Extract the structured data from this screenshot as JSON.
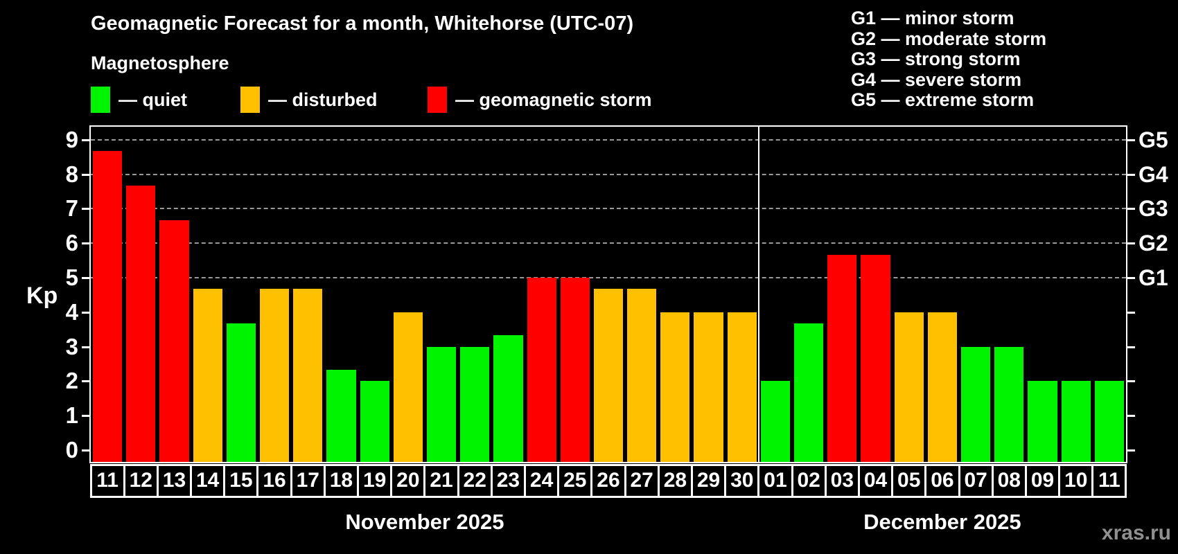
{
  "chart_data": {
    "type": "bar",
    "title": "Geomagnetic Forecast for a month, Whitehorse (UTC-07)",
    "subtitle": "Magnetosphere",
    "ylabel": "Kp",
    "ylim": [
      0,
      9.4
    ],
    "y_ticks": [
      0,
      1,
      2,
      3,
      4,
      5,
      6,
      7,
      8,
      9
    ],
    "gridlines": [
      5,
      6,
      7,
      8,
      9
    ],
    "grid": "dashed horizontal at storm levels only",
    "legend_position": "top-left",
    "right_axis_labels": [
      {
        "label": "G1",
        "value": 5
      },
      {
        "label": "G2",
        "value": 6
      },
      {
        "label": "G3",
        "value": 7
      },
      {
        "label": "G4",
        "value": 8
      },
      {
        "label": "G5",
        "value": 9
      }
    ],
    "legend": [
      {
        "label": "— quiet",
        "level": "quiet",
        "color": "#00f400"
      },
      {
        "label": "— disturbed",
        "level": "disturbed",
        "color": "#ffc000"
      },
      {
        "label": "— geomagnetic storm",
        "level": "storm",
        "color": "#ff0000"
      }
    ],
    "g_legend": [
      "G1 — minor storm",
      "G2 — moderate storm",
      "G3 — strong storm",
      "G4 — severe storm",
      "G5 — extreme storm"
    ],
    "colors": {
      "quiet": "#00f400",
      "disturbed": "#ffc000",
      "storm": "#ff0000"
    },
    "months": [
      {
        "label": "November 2025",
        "days": [
          {
            "day": "11",
            "value": 8.67,
            "level": "storm"
          },
          {
            "day": "12",
            "value": 7.67,
            "level": "storm"
          },
          {
            "day": "13",
            "value": 6.67,
            "level": "storm"
          },
          {
            "day": "14",
            "value": 4.67,
            "level": "disturbed"
          },
          {
            "day": "15",
            "value": 3.67,
            "level": "quiet"
          },
          {
            "day": "16",
            "value": 4.67,
            "level": "disturbed"
          },
          {
            "day": "17",
            "value": 4.67,
            "level": "disturbed"
          },
          {
            "day": "18",
            "value": 2.33,
            "level": "quiet"
          },
          {
            "day": "19",
            "value": 2.0,
            "level": "quiet"
          },
          {
            "day": "20",
            "value": 4.0,
            "level": "disturbed"
          },
          {
            "day": "21",
            "value": 3.0,
            "level": "quiet"
          },
          {
            "day": "22",
            "value": 3.0,
            "level": "quiet"
          },
          {
            "day": "23",
            "value": 3.33,
            "level": "quiet"
          },
          {
            "day": "24",
            "value": 5.0,
            "level": "storm"
          },
          {
            "day": "25",
            "value": 5.0,
            "level": "storm"
          },
          {
            "day": "26",
            "value": 4.67,
            "level": "disturbed"
          },
          {
            "day": "27",
            "value": 4.67,
            "level": "disturbed"
          },
          {
            "day": "28",
            "value": 4.0,
            "level": "disturbed"
          },
          {
            "day": "29",
            "value": 4.0,
            "level": "disturbed"
          },
          {
            "day": "30",
            "value": 4.0,
            "level": "disturbed"
          }
        ]
      },
      {
        "label": "December 2025",
        "days": [
          {
            "day": "01",
            "value": 2.0,
            "level": "quiet"
          },
          {
            "day": "02",
            "value": 3.67,
            "level": "quiet"
          },
          {
            "day": "03",
            "value": 5.67,
            "level": "storm"
          },
          {
            "day": "04",
            "value": 5.67,
            "level": "storm"
          },
          {
            "day": "05",
            "value": 4.0,
            "level": "disturbed"
          },
          {
            "day": "06",
            "value": 4.0,
            "level": "disturbed"
          },
          {
            "day": "07",
            "value": 3.0,
            "level": "quiet"
          },
          {
            "day": "08",
            "value": 3.0,
            "level": "quiet"
          },
          {
            "day": "09",
            "value": 2.0,
            "level": "quiet"
          },
          {
            "day": "10",
            "value": 2.0,
            "level": "quiet"
          },
          {
            "day": "11",
            "value": 2.0,
            "level": "quiet"
          }
        ]
      }
    ],
    "watermark": "xras.ru"
  }
}
